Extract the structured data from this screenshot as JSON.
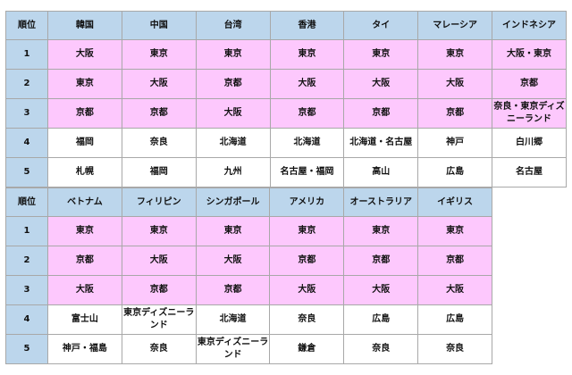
{
  "table1": {
    "headers": [
      "順位",
      "韓国",
      "中国",
      "台湾",
      "香港",
      "タイ",
      "マレーシア",
      "インドネシア"
    ],
    "rows": [
      [
        "1",
        "大阪",
        "東京",
        "東京",
        "東京",
        "東京",
        "東京",
        "大阪・東京"
      ],
      [
        "2",
        "東京",
        "大阪",
        "京都",
        "大阪",
        "大阪",
        "大阪",
        "京都"
      ],
      [
        "3",
        "京都",
        "京都",
        "大阪",
        "京都",
        "京都",
        "京都",
        "奈良・東京ディズニーランド"
      ],
      [
        "4",
        "福岡",
        "奈良",
        "北海道",
        "北海道",
        "北海道・名古屋",
        "神戸",
        "白川郷"
      ],
      [
        "5",
        "札幌",
        "福岡",
        "九州",
        "名古屋・福岡",
        "高山",
        "広島",
        "名古屋"
      ]
    ]
  },
  "table2": {
    "headers": [
      "順位",
      "ベトナム",
      "フィリピン",
      "シンガポール",
      "アメリカ",
      "オーストラリア",
      "イギリス"
    ],
    "rows": [
      [
        "1",
        "東京",
        "東京",
        "東京",
        "東京",
        "東京",
        "東京"
      ],
      [
        "2",
        "京都",
        "大阪",
        "大阪",
        "京都",
        "京都",
        "京都"
      ],
      [
        "3",
        "大阪",
        "京都",
        "京都",
        "大阪",
        "大阪",
        "大阪"
      ],
      [
        "4",
        "富士山",
        "東京ディズニーランド",
        "北海道",
        "奈良",
        "広島",
        "広島"
      ],
      [
        "5",
        "神戸・福島",
        "奈良",
        "東京ディズニーランド",
        "鎌倉",
        "奈良",
        "奈良"
      ]
    ]
  },
  "colors": {
    "header": "#bcd6ec",
    "top3": "#fdc8fd"
  }
}
